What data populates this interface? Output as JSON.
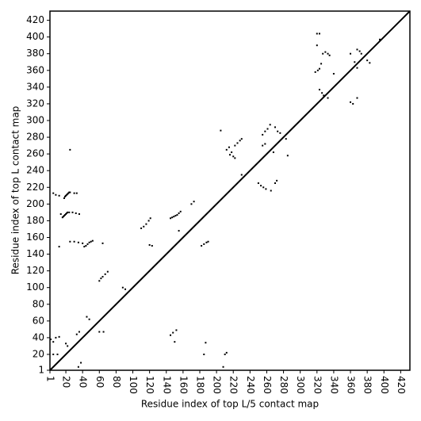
{
  "chart_data": {
    "type": "scatter",
    "x_label": "Residue index of top L/5 contact map",
    "y_label": "Residue index of top L contact map",
    "xlim": [
      1,
      431
    ],
    "ylim": [
      1,
      431
    ],
    "xticks": [
      1,
      20,
      40,
      60,
      80,
      100,
      120,
      140,
      160,
      180,
      200,
      220,
      240,
      260,
      280,
      300,
      320,
      340,
      360,
      380,
      400,
      420
    ],
    "yticks": [
      1,
      20,
      40,
      60,
      80,
      100,
      120,
      140,
      160,
      180,
      200,
      220,
      240,
      260,
      280,
      300,
      320,
      340,
      360,
      380,
      400,
      420
    ],
    "color": "#000000",
    "x": [
      18,
      19,
      20,
      21,
      22,
      23,
      24,
      25,
      30,
      33,
      5,
      8,
      12,
      16,
      17,
      18,
      19,
      20,
      21,
      22,
      24,
      28,
      32,
      36,
      14,
      25,
      25,
      30,
      35,
      40,
      42,
      44,
      46,
      48,
      50,
      52,
      12,
      60,
      62,
      64,
      67,
      70,
      64,
      88,
      91,
      110,
      113,
      116,
      119,
      121,
      120,
      123,
      145,
      147,
      149,
      151,
      153,
      155,
      157,
      155,
      170,
      173,
      205,
      212,
      215,
      218,
      220,
      222,
      225,
      228,
      230,
      222,
      216,
      230,
      255,
      258,
      261,
      264,
      270,
      273,
      276,
      285,
      283,
      318,
      321,
      323,
      325,
      327,
      330,
      333,
      335,
      320,
      323,
      320,
      395,
      2,
      5,
      8,
      12,
      5,
      10,
      20,
      22,
      33,
      36,
      35,
      38,
      45,
      48,
      60,
      65,
      145,
      148,
      152,
      150,
      182,
      185,
      188,
      190,
      185,
      187,
      210,
      212,
      208,
      250,
      253,
      256,
      259,
      265,
      270,
      272,
      255,
      258,
      268,
      323,
      326,
      328,
      333,
      340,
      360,
      363,
      368,
      360,
      365,
      368,
      371,
      373,
      380,
      383,
      368
    ],
    "values": [
      207,
      209,
      210,
      211,
      212,
      213,
      214,
      214,
      213,
      213,
      213,
      211,
      210,
      184,
      185,
      186,
      187,
      188,
      189,
      190,
      190,
      190,
      189,
      188,
      188,
      265,
      155,
      155,
      154,
      153,
      149,
      150,
      152,
      154,
      155,
      156,
      149,
      108,
      111,
      113,
      116,
      119,
      153,
      100,
      98,
      171,
      173,
      176,
      180,
      183,
      151,
      150,
      183,
      184,
      185,
      186,
      187,
      189,
      191,
      168,
      200,
      203,
      288,
      265,
      268,
      262,
      257,
      270,
      273,
      276,
      278,
      255,
      259,
      235,
      283,
      287,
      290,
      295,
      292,
      287,
      285,
      258,
      278,
      358,
      360,
      362,
      368,
      380,
      382,
      380,
      378,
      404,
      404,
      390,
      397,
      38,
      35,
      40,
      41,
      20,
      20,
      33,
      30,
      44,
      47,
      5,
      10,
      65,
      62,
      47,
      47,
      43,
      46,
      49,
      35,
      150,
      152,
      154,
      155,
      20,
      34,
      20,
      22,
      5,
      225,
      222,
      220,
      218,
      216,
      225,
      228,
      270,
      272,
      262,
      337,
      333,
      330,
      327,
      356,
      322,
      320,
      327,
      380,
      370,
      385,
      383,
      380,
      372,
      369,
      363
    ]
  }
}
